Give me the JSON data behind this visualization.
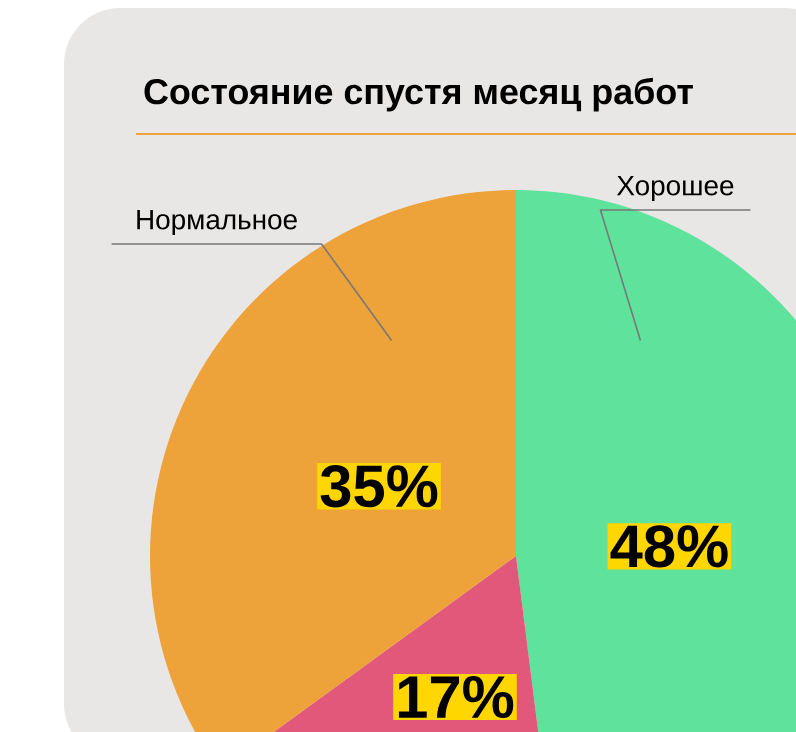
{
  "chart_data": {
    "type": "pie",
    "title": "Состояние спустя месяц работ",
    "categories": [
      "Хорошее",
      null,
      "Нормальное"
    ],
    "values": [
      48,
      17,
      35
    ],
    "colors": [
      "#5fe39c",
      "#e2587a",
      "#eda23a"
    ],
    "value_labels": [
      "48%",
      "17%",
      "35%"
    ]
  }
}
